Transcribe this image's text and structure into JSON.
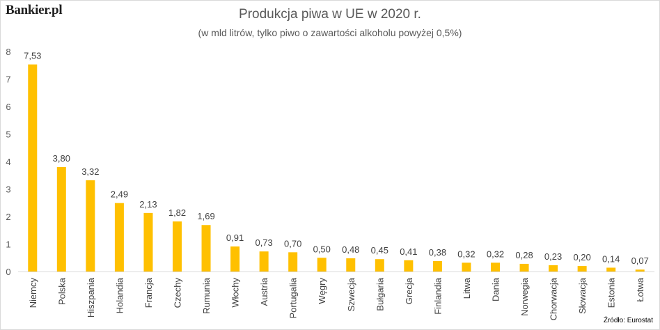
{
  "brand": "Bankier.pl",
  "source": "Źródło: Eurostat",
  "colors": {
    "bar": "#FFC000",
    "axis": "#d9d9d9",
    "text": "#595959"
  },
  "chart_data": {
    "type": "bar",
    "title": "Produkcja piwa w UE w 2020 r.",
    "subtitle": "(w mld litrów, tylko piwo o zawartości alkoholu powyżej 0,5%)",
    "categories": [
      "Niemcy",
      "Polska",
      "Hiszpania",
      "Holandia",
      "Francja",
      "Czechy",
      "Rumunia",
      "Włochy",
      "Austria",
      "Portugalia",
      "Węgry",
      "Szwecja",
      "Bułgaria",
      "Grecja",
      "Finlandia",
      "Litwa",
      "Dania",
      "Norwegia",
      "Chorwacja",
      "Słowacja",
      "Estonia",
      "Łotwa"
    ],
    "values": [
      7.53,
      3.8,
      3.32,
      2.49,
      2.13,
      1.82,
      1.69,
      0.91,
      0.73,
      0.7,
      0.5,
      0.48,
      0.45,
      0.41,
      0.38,
      0.32,
      0.32,
      0.28,
      0.23,
      0.2,
      0.14,
      0.07
    ],
    "value_labels": [
      "7,53",
      "3,80",
      "3,32",
      "2,49",
      "2,13",
      "1,82",
      "1,69",
      "0,91",
      "0,73",
      "0,70",
      "0,50",
      "0,48",
      "0,45",
      "0,41",
      "0,38",
      "0,32",
      "0,32",
      "0,28",
      "0,23",
      "0,20",
      "0,14",
      "0,07"
    ],
    "yticks": [
      "0",
      "1",
      "2",
      "3",
      "4",
      "5",
      "6",
      "7",
      "8"
    ],
    "ylim": [
      0,
      8
    ],
    "grid": false,
    "legend": "none"
  }
}
